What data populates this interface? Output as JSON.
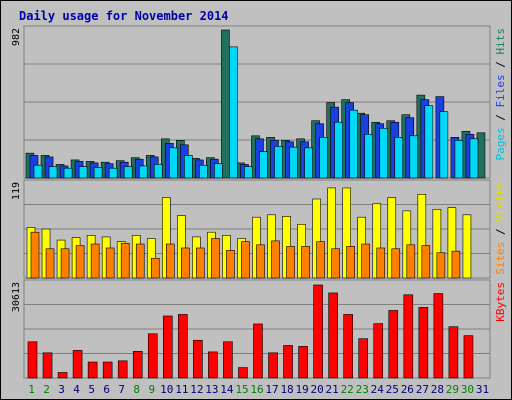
{
  "chart_data": {
    "type": "bar",
    "title": "Daily usage for November 2014",
    "categories": [
      "1",
      "2",
      "3",
      "4",
      "5",
      "6",
      "7",
      "8",
      "9",
      "10",
      "11",
      "12",
      "13",
      "14",
      "15",
      "16",
      "17",
      "18",
      "19",
      "20",
      "21",
      "22",
      "23",
      "24",
      "25",
      "26",
      "27",
      "28",
      "29",
      "30",
      "31"
    ],
    "weekend_days": [
      "1",
      "2",
      "8",
      "9",
      "15",
      "16",
      "22",
      "23",
      "29",
      "30"
    ],
    "panels": [
      {
        "name": "hits-files-pages",
        "ymax_label": "982",
        "ylim": [
          0,
          982
        ],
        "legend": [
          {
            "text": "Pages",
            "color": "#00c0e0"
          },
          {
            "text": " / ",
            "color": "#000000"
          },
          {
            "text": "Files",
            "color": "#2040e0"
          },
          {
            "text": " / ",
            "color": "#000000"
          },
          {
            "text": "Hits",
            "color": "#208060"
          }
        ],
        "series": [
          {
            "name": "Hits",
            "color": "#207060",
            "values": [
              165,
              150,
              90,
              120,
              110,
              105,
              115,
              135,
              150,
              260,
              250,
              130,
              135,
              982,
              100,
              280,
              270,
              250,
              260,
              380,
              500,
              520,
              430,
              370,
              380,
              420,
              550,
              0,
              0,
              310,
              300
            ]
          },
          {
            "name": "Files",
            "color": "#1a40e0",
            "values": [
              150,
              140,
              80,
              110,
              100,
              95,
              105,
              125,
              140,
              230,
              220,
              120,
              125,
              0,
              90,
              260,
              250,
              240,
              240,
              360,
              470,
              500,
              420,
              360,
              370,
              400,
              520,
              540,
              270,
              290,
              0
            ]
          },
          {
            "name": "Pages",
            "color": "#00d8f8",
            "values": [
              85,
              75,
              65,
              75,
              70,
              65,
              75,
              80,
              90,
              200,
              150,
              85,
              95,
              870,
              75,
              175,
              210,
              205,
              200,
              270,
              370,
              450,
              290,
              330,
              270,
              280,
              480,
              440,
              250,
              260,
              0
            ]
          }
        ]
      },
      {
        "name": "visits-sites",
        "ymax_label": "119",
        "ylim": [
          0,
          119
        ],
        "legend": [
          {
            "text": "Sites",
            "color": "#ff8000"
          },
          {
            "text": " / ",
            "color": "#000000"
          },
          {
            "text": "Visits",
            "color": "#e0e000"
          }
        ],
        "series": [
          {
            "name": "Visits",
            "color": "#ffff00",
            "values": [
              64,
              62,
              48,
              51,
              54,
              52,
              46,
              54,
              50,
              102,
              79,
              52,
              58,
              54,
              50,
              77,
              80,
              78,
              68,
              100,
              114,
              114,
              77,
              94,
              102,
              85,
              106,
              87,
              89,
              80,
              0
            ]
          },
          {
            "name": "Sites",
            "color": "#ff8000",
            "values": [
              58,
              37,
              37,
              41,
              43,
              38,
              44,
              43,
              25,
              43,
              38,
              38,
              50,
              35,
              46,
              42,
              47,
              40,
              40,
              46,
              37,
              40,
              43,
              38,
              37,
              42,
              41,
              32,
              34,
              0,
              0
            ]
          }
        ]
      },
      {
        "name": "kbytes",
        "ymax_label": "30613",
        "ylim": [
          0,
          30613
        ],
        "legend": [
          {
            "text": "KBytes",
            "color": "#ff0000"
          }
        ],
        "series": [
          {
            "name": "KBytes",
            "color": "#ff0000",
            "values": [
              11800,
              8200,
              1800,
              9000,
              5200,
              5200,
              5600,
              8700,
              14400,
              20200,
              20700,
              12300,
              8500,
              11800,
              3400,
              17600,
              8200,
              10600,
              10300,
              30300,
              27700,
              20700,
              12800,
              17700,
              22000,
              27100,
              23000,
              27500,
              16700,
              13800,
              0
            ]
          }
        ]
      }
    ]
  }
}
